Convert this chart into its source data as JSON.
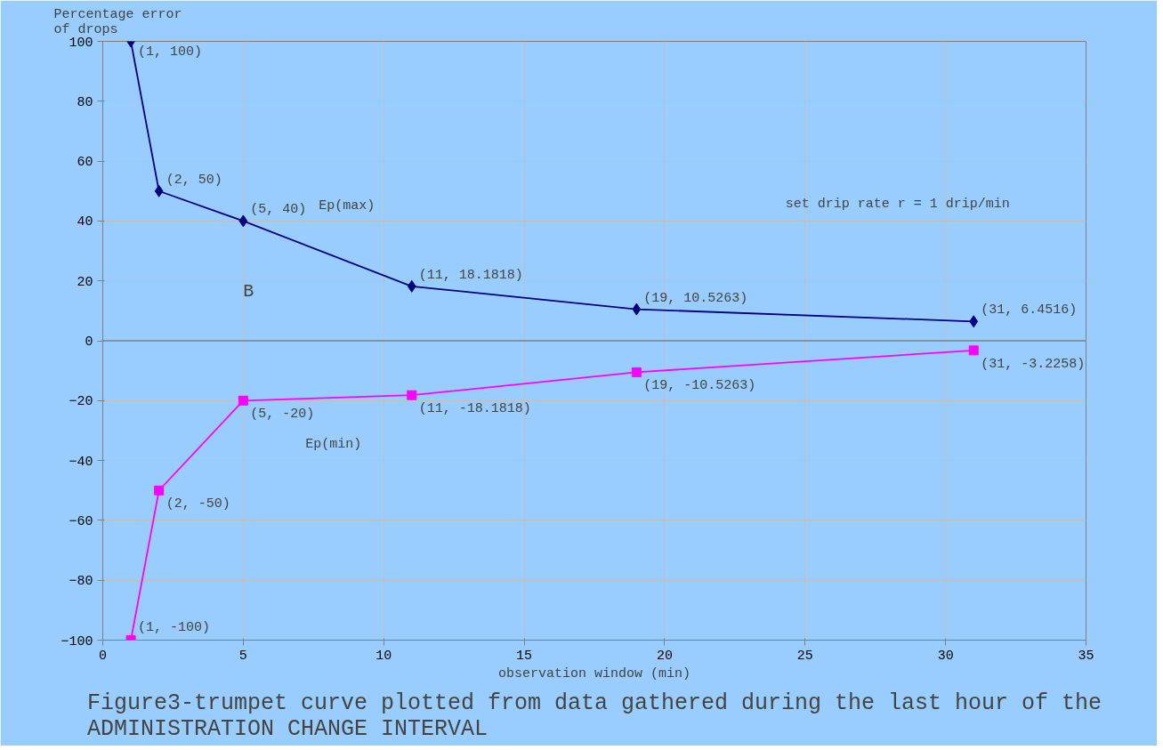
{
  "chart_data": {
    "type": "line",
    "title": "Figure3-trumpet curve plotted from data gathered during the last hour of the\nADMINISTRATION CHANGE INTERVAL",
    "xlabel": "observation window (min)",
    "ylabel": "Percentage error\nof drops",
    "x": [
      1,
      2,
      5,
      11,
      19,
      31
    ],
    "series": [
      {
        "name": "Ep(max)",
        "color": "#000080",
        "marker": "diamond",
        "values": [
          100,
          50,
          40,
          18.1818,
          10.5263,
          6.4516
        ],
        "value_labels": [
          "(1, 100)",
          "(2, 50)",
          "(5, 40)",
          "(11, 18.1818)",
          "(19, 10.5263)",
          "(31, 6.4516)"
        ]
      },
      {
        "name": "Ep(min)",
        "color": "#ff00ff",
        "marker": "square",
        "values": [
          -100,
          -50,
          -20,
          -18.1818,
          -10.5263,
          -3.2258
        ],
        "value_labels": [
          "(1, -100)",
          "(2, -50)",
          "(5, -20)",
          "(11, -18.1818)",
          "(19, -10.5263)",
          "(31, -3.2258)"
        ]
      }
    ],
    "annotations": [
      "set drip rate r = 1 drip/min",
      "B"
    ],
    "xlim": [
      0,
      35
    ],
    "xticks": [
      0,
      5,
      10,
      15,
      20,
      25,
      30,
      35
    ],
    "ylim": [
      -100,
      100
    ],
    "yticks": [
      -100,
      -80,
      -60,
      -40,
      -20,
      0,
      20,
      40,
      60,
      80,
      100
    ],
    "grid": true,
    "line_style": "solid"
  }
}
